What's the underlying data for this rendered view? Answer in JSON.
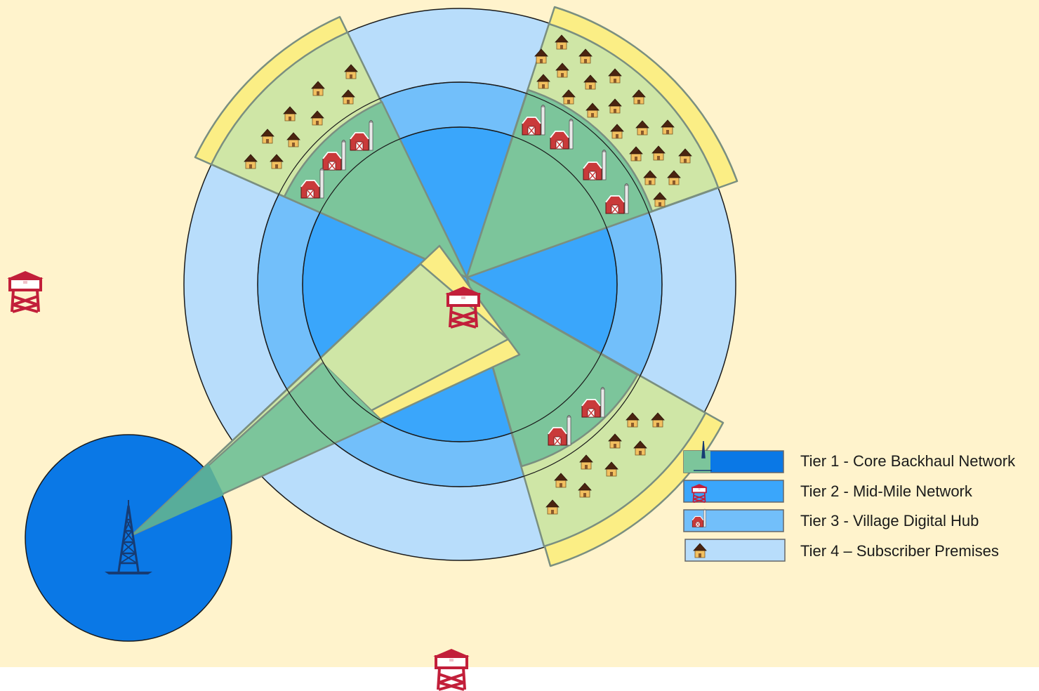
{
  "colors": {
    "background": "#fff3cc",
    "tier1": "#0a78e6",
    "tier2": "#3aa6fb",
    "tier3": "#72bffa",
    "tier4": "#b8ddfb",
    "sector_green": "#7cc59b",
    "sector_light_green": "#cfe6a6",
    "sector_yellow": "#fbee85",
    "tower_red": "#c21f3a",
    "radio_tower_navy": "#163b73"
  },
  "legend": [
    {
      "label": "Tier 1 - Core Backhaul Network",
      "icon": "radio-tower-icon"
    },
    {
      "label": "Tier 2 - Mid-Mile Network",
      "icon": "water-tower-icon"
    },
    {
      "label": "Tier 3 - Village Digital Hub",
      "icon": "barn-icon"
    },
    {
      "label": "Tier 4 – Subscriber Premises",
      "icon": "house-icon"
    }
  ]
}
